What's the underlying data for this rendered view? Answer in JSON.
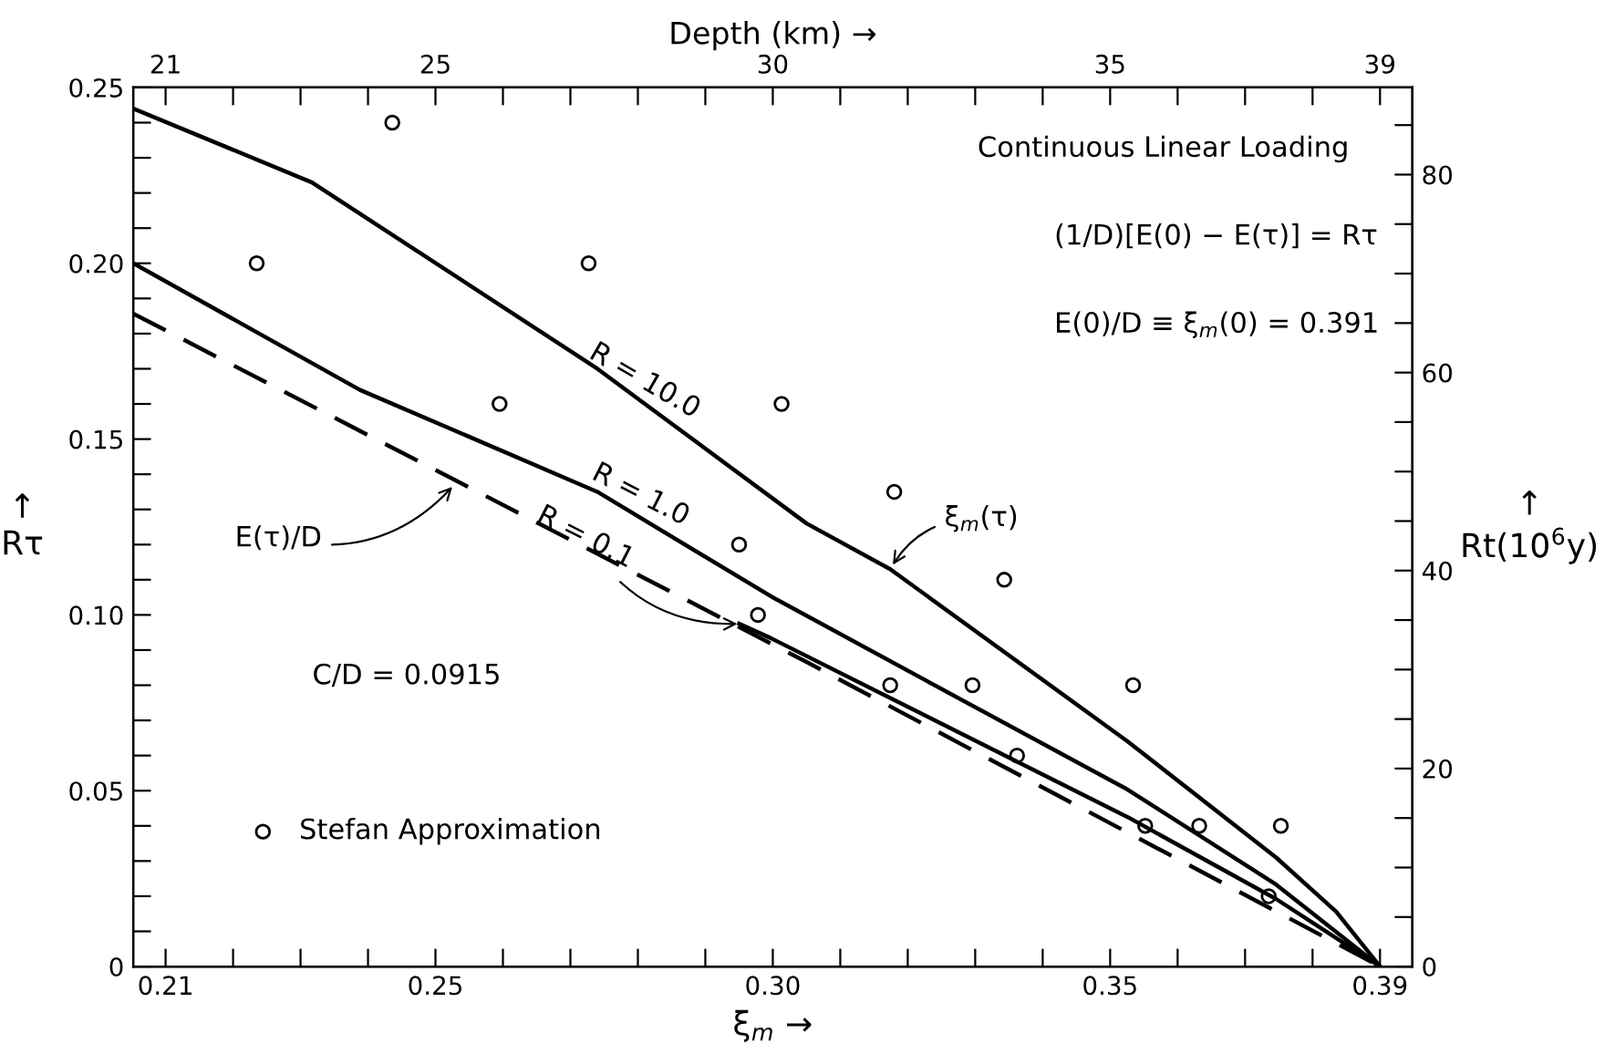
{
  "chart_data": {
    "type": "line",
    "xlabel": "ξ$_{m}$ →",
    "ylabel": "↑\nRτ",
    "y2label": "↑\nRt(10$^{6}$y)",
    "x2label": "Depth (km) →",
    "xlim": [
      0.2052,
      0.3948
    ],
    "ylim": [
      0,
      0.25
    ],
    "x2lim": [
      20.52,
      39.48
    ],
    "y2lim": [
      0,
      88.8
    ],
    "xticks": [
      0.21,
      {
        "value": 0.22,
        "label": null
      },
      {
        "value": 0.23,
        "label": null
      },
      {
        "value": 0.24,
        "label": null
      },
      0.25,
      {
        "value": 0.26,
        "label": null
      },
      {
        "value": 0.27,
        "label": null
      },
      {
        "value": 0.28,
        "label": null
      },
      {
        "value": 0.29,
        "label": null
      },
      {
        "value": 0.3,
        "label": "0.30"
      },
      {
        "value": 0.31,
        "label": null
      },
      {
        "value": 0.32,
        "label": null
      },
      {
        "value": 0.33,
        "label": null
      },
      {
        "value": 0.34,
        "label": null
      },
      0.35,
      {
        "value": 0.36,
        "label": null
      },
      {
        "value": 0.37,
        "label": null
      },
      {
        "value": 0.38,
        "label": null
      },
      0.39
    ],
    "x2ticks": [
      21,
      {
        "value": 22,
        "label": null
      },
      {
        "value": 23,
        "label": null
      },
      {
        "value": 24,
        "label": null
      },
      25,
      {
        "value": 26,
        "label": null
      },
      {
        "value": 27,
        "label": null
      },
      {
        "value": 28,
        "label": null
      },
      {
        "value": 29,
        "label": null
      },
      30,
      {
        "value": 31,
        "label": null
      },
      {
        "value": 32,
        "label": null
      },
      {
        "value": 33,
        "label": null
      },
      {
        "value": 34,
        "label": null
      },
      35,
      {
        "value": 36,
        "label": null
      },
      {
        "value": 37,
        "label": null
      },
      {
        "value": 38,
        "label": null
      },
      39
    ],
    "yticks": [
      0,
      {
        "value": 0.01,
        "label": null
      },
      {
        "value": 0.02,
        "label": null
      },
      {
        "value": 0.03,
        "label": null
      },
      {
        "value": 0.04,
        "label": null
      },
      0.05,
      {
        "value": 0.06,
        "label": null
      },
      {
        "value": 0.07,
        "label": null
      },
      {
        "value": 0.08,
        "label": null
      },
      {
        "value": 0.09,
        "label": null
      },
      {
        "value": 0.1,
        "label": "0.10"
      },
      {
        "value": 0.11,
        "label": null
      },
      {
        "value": 0.12,
        "label": null
      },
      {
        "value": 0.13,
        "label": null
      },
      {
        "value": 0.14,
        "label": null
      },
      0.15,
      {
        "value": 0.16,
        "label": null
      },
      {
        "value": 0.17,
        "label": null
      },
      {
        "value": 0.18,
        "label": null
      },
      {
        "value": 0.19,
        "label": null
      },
      {
        "value": 0.2,
        "label": "0.20"
      },
      {
        "value": 0.21,
        "label": null
      },
      {
        "value": 0.22,
        "label": null
      },
      {
        "value": 0.23,
        "label": null
      },
      {
        "value": 0.24,
        "label": null
      },
      0.25
    ],
    "y2ticks": [
      0,
      {
        "value": 5,
        "label": null
      },
      {
        "value": 10,
        "label": null
      },
      {
        "value": 15,
        "label": null
      },
      20,
      {
        "value": 25,
        "label": null
      },
      {
        "value": 30,
        "label": null
      },
      {
        "value": 35,
        "label": null
      },
      40,
      {
        "value": 45,
        "label": null
      },
      {
        "value": 50,
        "label": null
      },
      {
        "value": 55,
        "label": null
      },
      60,
      {
        "value": 65,
        "label": null
      },
      {
        "value": 70,
        "label": null
      },
      {
        "value": 75,
        "label": null
      },
      80,
      {
        "value": 85,
        "label": null
      }
    ],
    "grid": false,
    "legend": "bottom left",
    "series": [
      {
        "color": "#000000",
        "line_style": "solid",
        "x": [
          0.2052,
          0.2317,
          0.274,
          0.305,
          0.3174,
          0.3526,
          0.3746,
          0.3835,
          0.39
        ],
        "values": [
          0.244,
          0.223,
          0.17,
          0.126,
          0.113,
          0.064,
          0.031,
          0.0156,
          0
        ]
      },
      {
        "color": "#000000",
        "line_style": "solid",
        "x": [
          0.2052,
          0.2388,
          0.274,
          0.2997,
          0.3261,
          0.3526,
          0.3746,
          0.39
        ],
        "values": [
          0.2,
          0.164,
          0.135,
          0.1053,
          0.0778,
          0.0503,
          0.0233,
          0
        ]
      },
      {
        "color": "#000000",
        "line_style": "solid",
        "x": [
          0.295,
          0.2997,
          0.3526,
          0.3746,
          0.39
        ],
        "values": [
          0.0975,
          0.0934,
          0.0425,
          0.0192,
          0
        ]
      },
      {
        "color": "#000000",
        "line_style": "dashed",
        "x": [
          0.2052,
          0.305,
          0.39
        ],
        "values": [
          0.1857,
          0.0866,
          0
        ]
      },
      {
        "type": "scatter",
        "name": "Stefan Approximation",
        "color": "#000000",
        "marker": "circle",
        "x": [
          0.2235,
          0.2436,
          0.2595,
          0.2727,
          0.295,
          0.2978,
          0.3013,
          0.3174,
          0.318,
          0.3296,
          0.3343,
          0.3362,
          0.3534,
          0.3552,
          0.3632,
          0.3735,
          0.3753
        ],
        "values": [
          0.2,
          0.24,
          0.16,
          0.2,
          0.12,
          0.1,
          0.16,
          0.08,
          0.135,
          0.08,
          0.11,
          0.06,
          0.08,
          0.04,
          0.04,
          0.02,
          0.04
        ]
      }
    ],
    "annotations": [
      "Continuous Linear Loading",
      "(1/D)[E(0) − E(τ)] = Rτ",
      "E(0)/D ≡ ξ$_{m}$(0) = 0.391",
      "C/D = 0.0915",
      {
        "text": "R = 10.0",
        "x": 0.281,
        "y": 0.16
      },
      {
        "text": "R = 1.0",
        "x": 0.2804,
        "y": 0.1276
      },
      {
        "text": "R = 0.1",
        "x": 0.2955,
        "y": 0.0975
      },
      {
        "text": "E(τ)/D",
        "x": 0.253,
        "y": 0.1375
      },
      {
        "text": "ξ$_{m}$(τ)",
        "x": 0.3174,
        "y": 0.113
      }
    ]
  }
}
